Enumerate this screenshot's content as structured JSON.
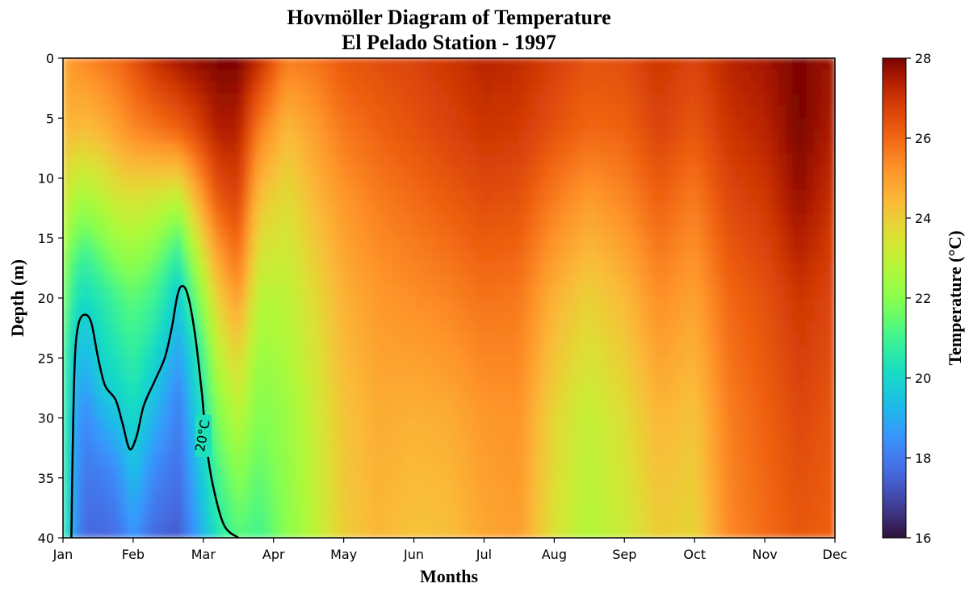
{
  "chart_data": {
    "type": "heatmap",
    "title": "Hovmöller Diagram of Temperature",
    "subtitle": "El Pelado Station - 1997",
    "xlabel": "Months",
    "ylabel": "Depth (m)",
    "x_ticks": [
      "Jan",
      "Feb",
      "Mar",
      "Apr",
      "May",
      "Jun",
      "Jul",
      "Aug",
      "Sep",
      "Oct",
      "Nov",
      "Dec"
    ],
    "x_range": [
      0,
      11
    ],
    "y_ticks": [
      0,
      5,
      10,
      15,
      20,
      25,
      30,
      35,
      40
    ],
    "y_range": [
      0,
      40
    ],
    "y_inverted": true,
    "colorbar": {
      "label": "Temperature (°C)",
      "ticks": [
        16,
        18,
        20,
        22,
        24,
        26,
        28
      ],
      "range": [
        16,
        28
      ],
      "colormap": "turbo"
    },
    "grid": false,
    "columns": [
      {
        "month": 0.0,
        "profile": [
          [
            0,
            24.6
          ],
          [
            6,
            24.3
          ],
          [
            12,
            23.6
          ],
          [
            18,
            22.4
          ],
          [
            25,
            21.8
          ],
          [
            33,
            21.6
          ],
          [
            40,
            21.6
          ]
        ]
      },
      {
        "month": 0.1,
        "profile": [
          [
            0,
            25.2
          ],
          [
            6,
            24.5
          ],
          [
            12,
            22.8
          ],
          [
            18,
            21.2
          ],
          [
            25,
            19.9
          ],
          [
            33,
            19.4
          ],
          [
            40,
            19.3
          ]
        ]
      },
      {
        "month": 0.3,
        "profile": [
          [
            0,
            25.4
          ],
          [
            6,
            24.3
          ],
          [
            12,
            22.4
          ],
          [
            17,
            20.7
          ],
          [
            21,
            19.9
          ],
          [
            30,
            18.2
          ],
          [
            40,
            17.6
          ]
        ]
      },
      {
        "month": 0.6,
        "profile": [
          [
            0,
            25.8
          ],
          [
            6,
            24.6
          ],
          [
            12,
            22.9
          ],
          [
            20,
            20.6
          ],
          [
            27,
            19.9
          ],
          [
            34,
            18.2
          ],
          [
            40,
            17.6
          ]
        ]
      },
      {
        "month": 0.8,
        "profile": [
          [
            0,
            26.0
          ],
          [
            6,
            25.0
          ],
          [
            12,
            23.3
          ],
          [
            20,
            21.1
          ],
          [
            28,
            19.9
          ],
          [
            35,
            18.4
          ],
          [
            40,
            17.8
          ]
        ]
      },
      {
        "month": 1.0,
        "profile": [
          [
            0,
            26.4
          ],
          [
            6,
            25.4
          ],
          [
            12,
            23.4
          ],
          [
            20,
            21.4
          ],
          [
            32,
            19.9
          ],
          [
            40,
            18.6
          ]
        ]
      },
      {
        "month": 1.3,
        "profile": [
          [
            0,
            27.1
          ],
          [
            6,
            25.7
          ],
          [
            12,
            23.2
          ],
          [
            18,
            21.4
          ],
          [
            26,
            19.9
          ],
          [
            34,
            18.4
          ],
          [
            40,
            17.6
          ]
        ]
      },
      {
        "month": 1.65,
        "profile": [
          [
            0,
            27.6
          ],
          [
            6,
            26.1
          ],
          [
            11,
            23.4
          ],
          [
            15,
            21.3
          ],
          [
            19,
            19.9
          ],
          [
            28,
            18.2
          ],
          [
            40,
            17.4
          ]
        ]
      },
      {
        "month": 1.9,
        "profile": [
          [
            0,
            27.8
          ],
          [
            6,
            26.6
          ],
          [
            12,
            24.4
          ],
          [
            18,
            22.2
          ],
          [
            24,
            20.4
          ],
          [
            30,
            19.6
          ],
          [
            40,
            18.6
          ]
        ]
      },
      {
        "month": 2.2,
        "profile": [
          [
            0,
            28.0
          ],
          [
            6,
            27.4
          ],
          [
            12,
            26.2
          ],
          [
            20,
            23.9
          ],
          [
            28,
            22.2
          ],
          [
            35,
            21.0
          ],
          [
            40,
            20.4
          ]
        ]
      },
      {
        "month": 2.5,
        "profile": [
          [
            0,
            28.0
          ],
          [
            6,
            27.4
          ],
          [
            12,
            26.7
          ],
          [
            18,
            25.6
          ],
          [
            25,
            23.8
          ],
          [
            33,
            22.3
          ],
          [
            40,
            21.3
          ]
        ]
      },
      {
        "month": 2.8,
        "profile": [
          [
            0,
            27.2
          ],
          [
            6,
            25.6
          ],
          [
            12,
            24.2
          ],
          [
            20,
            22.8
          ],
          [
            28,
            22.0
          ],
          [
            35,
            21.4
          ],
          [
            40,
            21.0
          ]
        ]
      },
      {
        "month": 3.2,
        "profile": [
          [
            0,
            25.6
          ],
          [
            6,
            24.4
          ],
          [
            12,
            23.6
          ],
          [
            20,
            22.9
          ],
          [
            30,
            22.3
          ],
          [
            40,
            22.0
          ]
        ]
      },
      {
        "month": 3.6,
        "profile": [
          [
            0,
            25.8
          ],
          [
            6,
            25.0
          ],
          [
            12,
            24.4
          ],
          [
            20,
            23.7
          ],
          [
            30,
            23.2
          ],
          [
            40,
            22.9
          ]
        ]
      },
      {
        "month": 4.0,
        "profile": [
          [
            0,
            26.3
          ],
          [
            6,
            25.7
          ],
          [
            12,
            25.1
          ],
          [
            20,
            24.6
          ],
          [
            30,
            24.2
          ],
          [
            40,
            24.0
          ]
        ]
      },
      {
        "month": 4.5,
        "profile": [
          [
            0,
            26.5
          ],
          [
            6,
            26.1
          ],
          [
            12,
            25.6
          ],
          [
            20,
            25.1
          ],
          [
            30,
            24.7
          ],
          [
            40,
            24.5
          ]
        ]
      },
      {
        "month": 5.0,
        "profile": [
          [
            0,
            26.7
          ],
          [
            6,
            26.4
          ],
          [
            12,
            25.9
          ],
          [
            20,
            25.3
          ],
          [
            30,
            24.6
          ],
          [
            40,
            24.2
          ]
        ]
      },
      {
        "month": 5.5,
        "profile": [
          [
            0,
            27.0
          ],
          [
            6,
            26.7
          ],
          [
            12,
            26.2
          ],
          [
            20,
            25.5
          ],
          [
            30,
            24.7
          ],
          [
            40,
            24.3
          ]
        ]
      },
      {
        "month": 6.0,
        "profile": [
          [
            0,
            27.3
          ],
          [
            6,
            27.0
          ],
          [
            12,
            26.5
          ],
          [
            20,
            25.8
          ],
          [
            30,
            25.1
          ],
          [
            40,
            24.8
          ]
        ]
      },
      {
        "month": 6.5,
        "profile": [
          [
            0,
            27.2
          ],
          [
            6,
            26.9
          ],
          [
            12,
            26.4
          ],
          [
            20,
            25.7
          ],
          [
            30,
            25.2
          ],
          [
            40,
            25.0
          ]
        ]
      },
      {
        "month": 7.0,
        "profile": [
          [
            0,
            26.8
          ],
          [
            6,
            26.4
          ],
          [
            12,
            25.6
          ],
          [
            20,
            24.6
          ],
          [
            30,
            23.8
          ],
          [
            40,
            23.5
          ]
        ]
      },
      {
        "month": 7.5,
        "profile": [
          [
            0,
            26.4
          ],
          [
            6,
            26.0
          ],
          [
            12,
            25.0
          ],
          [
            20,
            23.9
          ],
          [
            30,
            23.0
          ],
          [
            40,
            22.7
          ]
        ]
      },
      {
        "month": 8.0,
        "profile": [
          [
            0,
            26.5
          ],
          [
            6,
            26.1
          ],
          [
            12,
            25.4
          ],
          [
            20,
            24.4
          ],
          [
            30,
            23.6
          ],
          [
            40,
            23.2
          ]
        ]
      },
      {
        "month": 8.5,
        "profile": [
          [
            0,
            27.0
          ],
          [
            6,
            26.7
          ],
          [
            12,
            26.1
          ],
          [
            20,
            25.3
          ],
          [
            30,
            24.5
          ],
          [
            40,
            24.0
          ]
        ]
      },
      {
        "month": 9.0,
        "profile": [
          [
            0,
            26.7
          ],
          [
            6,
            26.3
          ],
          [
            12,
            25.6
          ],
          [
            20,
            24.9
          ],
          [
            30,
            24.2
          ],
          [
            40,
            23.8
          ]
        ]
      },
      {
        "month": 9.5,
        "profile": [
          [
            0,
            27.3
          ],
          [
            6,
            27.0
          ],
          [
            12,
            26.6
          ],
          [
            20,
            26.0
          ],
          [
            30,
            25.6
          ],
          [
            40,
            25.4
          ]
        ]
      },
      {
        "month": 10.0,
        "profile": [
          [
            0,
            27.6
          ],
          [
            6,
            27.3
          ],
          [
            12,
            26.9
          ],
          [
            20,
            26.4
          ],
          [
            30,
            26.1
          ],
          [
            40,
            25.9
          ]
        ]
      },
      {
        "month": 10.5,
        "profile": [
          [
            0,
            28.0
          ],
          [
            6,
            28.0
          ],
          [
            12,
            27.7
          ],
          [
            20,
            27.0
          ],
          [
            30,
            26.6
          ],
          [
            40,
            26.3
          ]
        ]
      },
      {
        "month": 11.0,
        "profile": [
          [
            0,
            27.6
          ],
          [
            6,
            27.4
          ],
          [
            12,
            27.0
          ],
          [
            20,
            26.6
          ],
          [
            30,
            26.3
          ],
          [
            40,
            26.1
          ]
        ]
      }
    ],
    "contours": [
      {
        "label": "20°C",
        "level": 20,
        "points": [
          [
            0.12,
            40
          ],
          [
            0.14,
            32
          ],
          [
            0.17,
            25
          ],
          [
            0.22,
            22.2
          ],
          [
            0.3,
            21.4
          ],
          [
            0.4,
            22
          ],
          [
            0.5,
            25
          ],
          [
            0.6,
            27.3
          ],
          [
            0.75,
            28.5
          ],
          [
            0.85,
            30.5
          ],
          [
            0.95,
            32.6
          ],
          [
            1.05,
            31.5
          ],
          [
            1.15,
            29
          ],
          [
            1.3,
            27
          ],
          [
            1.45,
            25
          ],
          [
            1.55,
            22.5
          ],
          [
            1.63,
            19.8
          ],
          [
            1.7,
            19
          ],
          [
            1.78,
            19.8
          ],
          [
            1.88,
            23
          ],
          [
            1.98,
            28
          ],
          [
            2.05,
            32.5
          ],
          [
            2.15,
            36
          ],
          [
            2.3,
            39
          ],
          [
            2.5,
            40
          ]
        ]
      }
    ]
  }
}
